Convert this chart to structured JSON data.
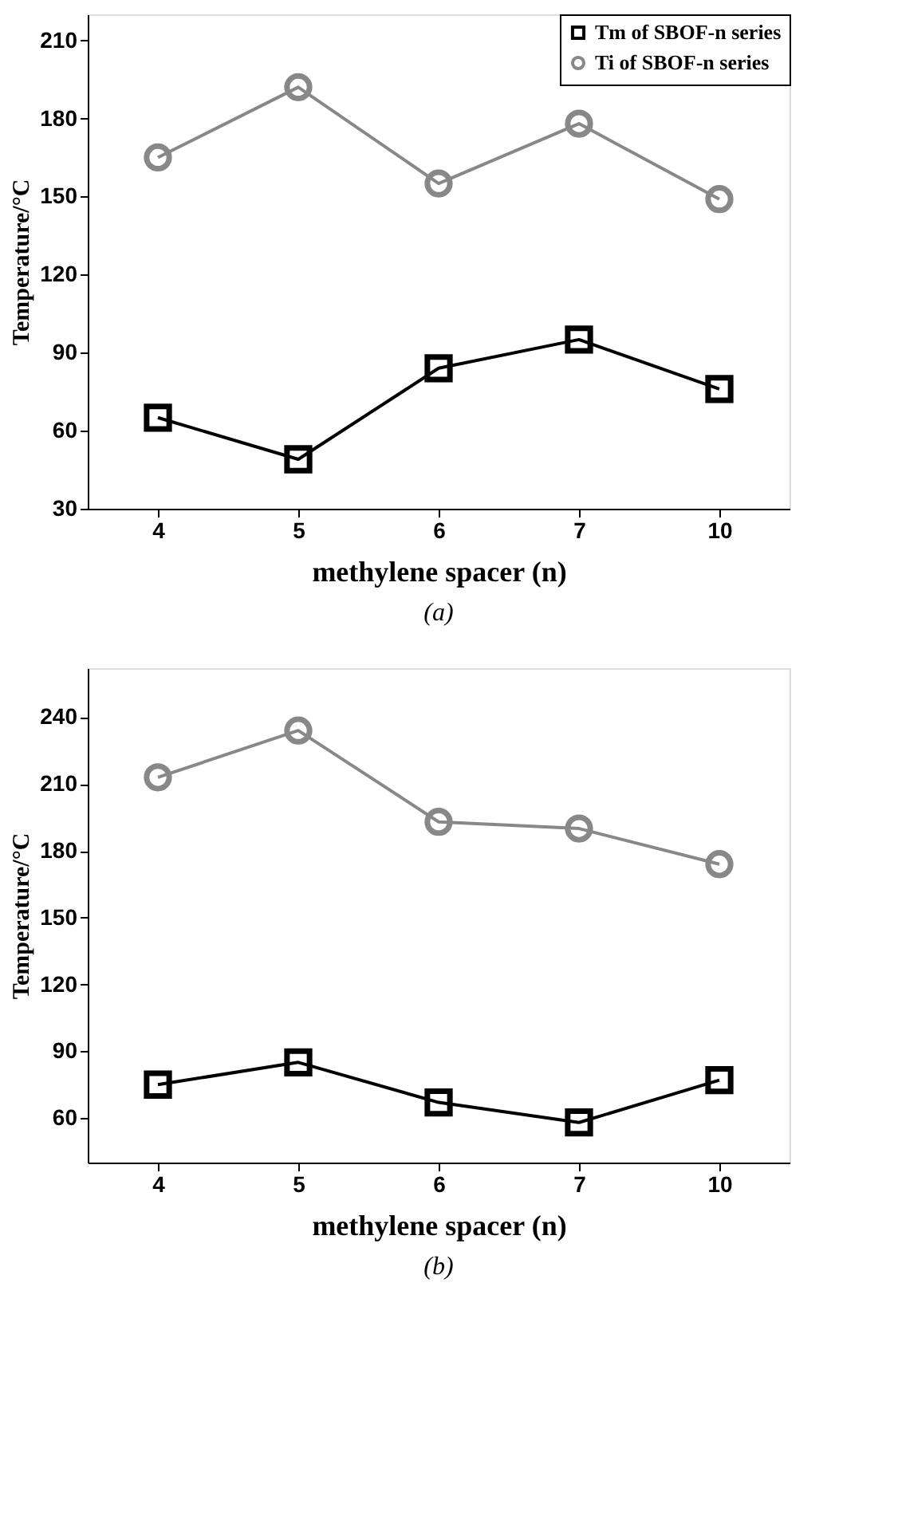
{
  "chart_data": [
    {
      "type": "line",
      "xlabel": "methylene spacer (n)",
      "ylabel": "Temperature/°C",
      "annotations": [
        "(a)"
      ],
      "categories": [
        "4",
        "5",
        "6",
        "7",
        "10"
      ],
      "ylim": [
        30,
        220
      ],
      "yticks": [
        30,
        60,
        90,
        120,
        150,
        180,
        210
      ],
      "legend": "top right",
      "grid": false,
      "series": [
        {
          "name": "Tm of SBOF-n series",
          "color": "#000000",
          "marker": "square",
          "line_style": "solid",
          "values": [
            65,
            49,
            84,
            95,
            76
          ]
        },
        {
          "name": "Ti   of SBOF-n series",
          "color": "#888888",
          "marker": "circle",
          "line_style": "solid",
          "values": [
            165,
            192,
            155,
            178,
            149
          ]
        }
      ]
    },
    {
      "type": "line",
      "xlabel": "methylene spacer (n)",
      "ylabel": "Temperature/°C",
      "annotations": [
        "(b)"
      ],
      "categories": [
        "4",
        "5",
        "6",
        "7",
        "10"
      ],
      "ylim": [
        40,
        262
      ],
      "yticks": [
        60,
        90,
        120,
        150,
        180,
        210,
        240
      ],
      "legend": "top right",
      "grid": false,
      "series": [
        {
          "name": "Tm of SBOF-n series",
          "color": "#000000",
          "marker": "square",
          "line_style": "solid",
          "values": [
            75,
            85,
            67,
            58,
            77
          ]
        },
        {
          "name": "Ti   of SBOF-n series",
          "color": "#888888",
          "marker": "circle",
          "line_style": "solid",
          "values": [
            213,
            234,
            193,
            190,
            174
          ]
        }
      ]
    }
  ]
}
